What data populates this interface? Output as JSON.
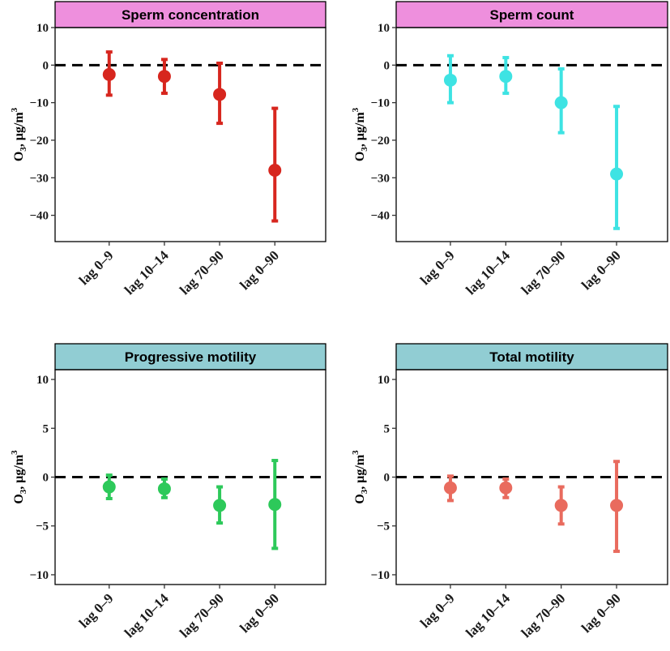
{
  "chart_data": [
    {
      "type": "errorbar",
      "title": "Sperm concentration",
      "strip_color": "#EE8FDD",
      "color": "#D7261E",
      "ylabel": {
        "base": "O",
        "sub": "3",
        "unit": ", μg/m",
        "sup": "3"
      },
      "ylim": [
        -47,
        10
      ],
      "yticks": [
        10,
        0,
        -10,
        -20,
        -30,
        -40
      ],
      "ytick_labels": [
        "10",
        "0",
        "−10",
        "−20",
        "−30",
        "−40"
      ],
      "categories": [
        "lag 0–9",
        "lag 10–14",
        "lag 70–90",
        "lag 0–90"
      ],
      "estimate": [
        -2.5,
        -3.0,
        -7.8,
        -28.0
      ],
      "lower": [
        -8.0,
        -7.5,
        -15.5,
        -41.5
      ],
      "upper": [
        3.5,
        1.5,
        0.5,
        -11.5
      ],
      "reference_line": 0
    },
    {
      "type": "errorbar",
      "title": "Sperm count",
      "strip_color": "#EE8FDD",
      "color": "#3EE3E3",
      "ylabel": {
        "base": "O",
        "sub": "3",
        "unit": ", μg/m",
        "sup": "3"
      },
      "ylim": [
        -47,
        10
      ],
      "yticks": [
        10,
        0,
        -10,
        -20,
        -30,
        -40
      ],
      "ytick_labels": [
        "10",
        "0",
        "−10",
        "−20",
        "−30",
        "−40"
      ],
      "categories": [
        "lag 0–9",
        "lag 10–14",
        "lag 70–90",
        "lag 0–90"
      ],
      "estimate": [
        -4.0,
        -3.0,
        -10.0,
        -29.0
      ],
      "lower": [
        -10.0,
        -7.5,
        -18.0,
        -43.5
      ],
      "upper": [
        2.5,
        2.0,
        -1.0,
        -11.0
      ],
      "reference_line": 0
    },
    {
      "type": "errorbar",
      "title": "Progressive motility",
      "strip_color": "#91CDD3",
      "color": "#2DC95A",
      "ylabel": {
        "base": "O",
        "sub": "3",
        "unit": ", μg/m",
        "sup": "3"
      },
      "ylim": [
        -11,
        11
      ],
      "yticks": [
        10,
        5,
        0,
        -5,
        -10
      ],
      "ytick_labels": [
        "10",
        "5",
        "0",
        "−5",
        "−10"
      ],
      "categories": [
        "lag 0–9",
        "lag 10–14",
        "lag 70–90",
        "lag 0–90"
      ],
      "estimate": [
        -1.0,
        -1.2,
        -2.9,
        -2.8
      ],
      "lower": [
        -2.2,
        -2.1,
        -4.7,
        -7.3
      ],
      "upper": [
        0.2,
        -0.2,
        -1.0,
        1.7
      ],
      "reference_line": 0
    },
    {
      "type": "errorbar",
      "title": "Total motility",
      "strip_color": "#91CDD3",
      "color": "#E96B5E",
      "ylabel": {
        "base": "O",
        "sub": "3",
        "unit": ", μg/m",
        "sup": "3"
      },
      "ylim": [
        -11,
        11
      ],
      "yticks": [
        10,
        5,
        0,
        -5,
        -10
      ],
      "ytick_labels": [
        "10",
        "5",
        "0",
        "−5",
        "−10"
      ],
      "categories": [
        "lag 0–9",
        "lag 10–14",
        "lag 70–90",
        "lag 0–90"
      ],
      "estimate": [
        -1.1,
        -1.1,
        -2.9,
        -2.9
      ],
      "lower": [
        -2.4,
        -2.1,
        -4.8,
        -7.6
      ],
      "upper": [
        0.1,
        -0.2,
        -1.0,
        1.6
      ],
      "reference_line": 0
    }
  ]
}
